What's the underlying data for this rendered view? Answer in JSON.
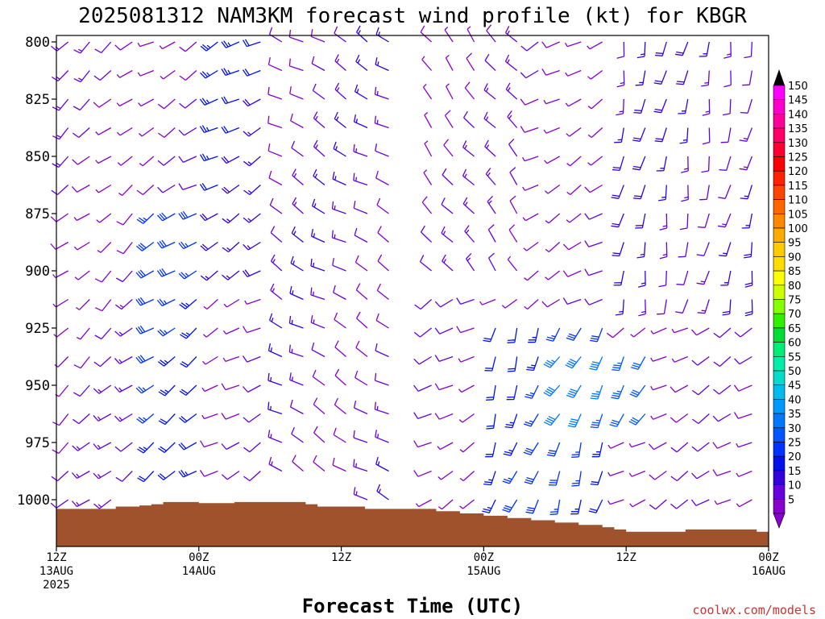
{
  "chart_data": {
    "type": "wind-barb-profile",
    "title": "2025081312 NAM3KM forecast wind profile (kt) for KBGR",
    "xlabel": "Forecast Time (UTC)",
    "credit": "coolwx.com/models",
    "x_ticks": [
      {
        "hour": 0,
        "line1": "12Z",
        "line2": "13AUG",
        "line3": "2025"
      },
      {
        "hour": 12,
        "line1": "00Z",
        "line2": "14AUG",
        "line3": ""
      },
      {
        "hour": 24,
        "line1": "12Z",
        "line2": "",
        "line3": ""
      },
      {
        "hour": 36,
        "line1": "00Z",
        "line2": "15AUG",
        "line3": ""
      },
      {
        "hour": 48,
        "line1": "12Z",
        "line2": "",
        "line3": ""
      },
      {
        "hour": 60,
        "line1": "00Z",
        "line2": "16AUG",
        "line3": ""
      }
    ],
    "xlim": [
      0,
      60
    ],
    "y_ticks": [
      800,
      825,
      850,
      875,
      900,
      925,
      950,
      975,
      1000
    ],
    "ylim": [
      1020,
      800
    ],
    "y_reversed": true,
    "levels_hpa": [
      800,
      812.5,
      825,
      837.5,
      850,
      862.5,
      875,
      887.5,
      900,
      912.5,
      925,
      937.5,
      950,
      962.5,
      975,
      987.5,
      1000
    ],
    "barb_hour_step": 1.8,
    "colorbar": {
      "labels": [
        "150",
        "145",
        "140",
        "135",
        "130",
        "125",
        "120",
        "115",
        "110",
        "105",
        "100",
        "95",
        "90",
        "85",
        "80",
        "75",
        "70",
        "65",
        "60",
        "55",
        "50",
        "45",
        "40",
        "35",
        "30",
        "25",
        "20",
        "15",
        "10",
        "5"
      ],
      "colors": [
        "#ff00ff",
        "#ff00cc",
        "#ff0099",
        "#ff0066",
        "#ff0033",
        "#ff0000",
        "#ff2200",
        "#ff4400",
        "#ff6600",
        "#ff8800",
        "#ffaa00",
        "#ffcc00",
        "#ffdd00",
        "#ffff00",
        "#ccff00",
        "#88ff00",
        "#33ee00",
        "#00dd33",
        "#00ee77",
        "#00eeaa",
        "#00ddcc",
        "#00bbee",
        "#0099ff",
        "#0077ff",
        "#0055ff",
        "#0033ff",
        "#0011ee",
        "#3300dd",
        "#6600dd",
        "#8800cc"
      ]
    },
    "terrain_pressure_hpa": [
      [
        0,
        1004
      ],
      [
        4,
        1004
      ],
      [
        5,
        1003
      ],
      [
        6,
        1003
      ],
      [
        7,
        1002.5
      ],
      [
        8,
        1002
      ],
      [
        9,
        1001
      ],
      [
        10,
        1001
      ],
      [
        12,
        1001.5
      ],
      [
        14,
        1001.5
      ],
      [
        15,
        1001
      ],
      [
        17,
        1001
      ],
      [
        18,
        1001
      ],
      [
        20,
        1001
      ],
      [
        21,
        1002
      ],
      [
        22,
        1003
      ],
      [
        25,
        1003
      ],
      [
        26,
        1004
      ],
      [
        29,
        1004
      ],
      [
        30,
        1004
      ],
      [
        32,
        1005
      ],
      [
        34,
        1006
      ],
      [
        36,
        1007
      ],
      [
        38,
        1008
      ],
      [
        40,
        1009
      ],
      [
        42,
        1010
      ],
      [
        44,
        1011
      ],
      [
        46,
        1012
      ],
      [
        47,
        1013
      ],
      [
        48,
        1014
      ],
      [
        52,
        1014
      ],
      [
        53,
        1013
      ],
      [
        56,
        1013
      ],
      [
        59,
        1014
      ],
      [
        60,
        1014
      ]
    ],
    "terrain_color": "#a0522d",
    "wind": {
      "gap_hour_range": [
        29.6,
        31.0
      ],
      "gap_top_until_level": 750,
      "regions": [
        {
          "hours": [
            0,
            8
          ],
          "levels": [
            800,
            1000
          ],
          "dir_deg": 230,
          "speed_kt": 10
        },
        {
          "hours": [
            8,
            13
          ],
          "levels": [
            870,
            990
          ],
          "dir_deg": 235,
          "speed_kt": 25
        },
        {
          "hours": [
            13,
            19
          ],
          "levels": [
            800,
            900
          ],
          "dir_deg": 240,
          "speed_kt": 20
        },
        {
          "hours": [
            19,
            31
          ],
          "levels": [
            800,
            1000
          ],
          "dir_deg": 300,
          "speed_kt": 12
        },
        {
          "hours": [
            31,
            39
          ],
          "levels": [
            800,
            900
          ],
          "dir_deg": 320,
          "speed_kt": 10
        },
        {
          "hours": [
            36,
            46
          ],
          "levels": [
            920,
            1000
          ],
          "dir_deg": 200,
          "speed_kt": 25
        },
        {
          "hours": [
            42,
            51
          ],
          "levels": [
            930,
            970
          ],
          "dir_deg": 210,
          "speed_kt": 35
        },
        {
          "hours": [
            46,
            60
          ],
          "levels": [
            800,
            920
          ],
          "dir_deg": 190,
          "speed_kt": 15
        }
      ]
    }
  }
}
